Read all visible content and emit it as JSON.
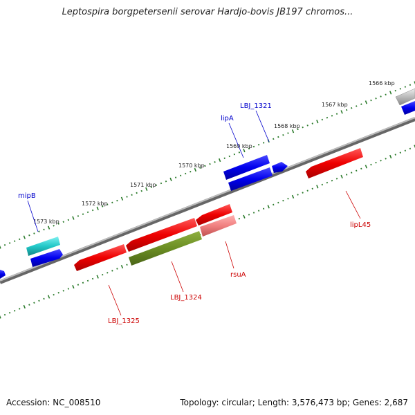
{
  "title": "Leptospira borgpetersenii serovar Hardjo-bovis JB197 chromos...",
  "footer": {
    "accession": "Accession: NC_008510",
    "topology": "Topology: circular; Length: 3,576,473 bp; Genes: 2,687"
  },
  "scale_ticks": [
    "1566 kbp",
    "1567 kbp",
    "1568 kbp",
    "1569 kbp",
    "1570 kbp",
    "1571 kbp",
    "1572 kbp",
    "1573 kbp"
  ],
  "gene_labels": {
    "mipB": "mipB",
    "lipA": "lipA",
    "LBJ_1321": "LBJ_1321",
    "lipL45": "lipL45",
    "rsuA": "rsuA",
    "LBJ_1324": "LBJ_1324",
    "LBJ_1325": "LBJ_1325"
  },
  "colors": {
    "forward_strand": "#0000ee",
    "reverse_strand": "#ee0000",
    "cyan_feature": "#22c8c8",
    "olive_feature": "#6b8e23",
    "backbone": "#888888",
    "tick": "#2a7a2a"
  }
}
